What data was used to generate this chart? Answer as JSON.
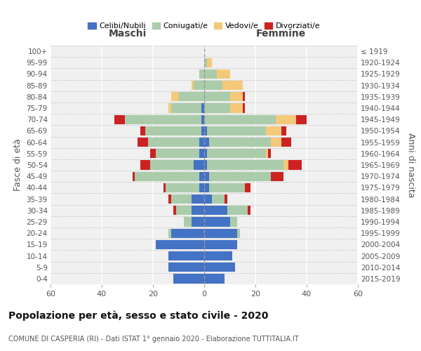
{
  "age_groups_bottom_to_top": [
    "0-4",
    "5-9",
    "10-14",
    "15-19",
    "20-24",
    "25-29",
    "30-34",
    "35-39",
    "40-44",
    "45-49",
    "50-54",
    "55-59",
    "60-64",
    "65-69",
    "70-74",
    "75-79",
    "80-84",
    "85-89",
    "90-94",
    "95-99",
    "100+"
  ],
  "birth_years_bottom_to_top": [
    "2015-2019",
    "2010-2014",
    "2005-2009",
    "2000-2004",
    "1995-1999",
    "1990-1994",
    "1985-1989",
    "1980-1984",
    "1975-1979",
    "1970-1974",
    "1965-1969",
    "1960-1964",
    "1955-1959",
    "1950-1954",
    "1945-1949",
    "1940-1944",
    "1935-1939",
    "1930-1934",
    "1925-1929",
    "1920-1924",
    "≤ 1919"
  ],
  "male": {
    "celibe": [
      12,
      14,
      14,
      19,
      13,
      5,
      5,
      5,
      2,
      2,
      4,
      2,
      2,
      1,
      1,
      1,
      0,
      0,
      0,
      0,
      0
    ],
    "coniugato": [
      0,
      0,
      0,
      0,
      1,
      3,
      6,
      8,
      13,
      25,
      17,
      17,
      20,
      22,
      30,
      12,
      10,
      4,
      2,
      0,
      0
    ],
    "vedovo": [
      0,
      0,
      0,
      0,
      0,
      0,
      0,
      0,
      0,
      0,
      0,
      0,
      0,
      0,
      0,
      1,
      3,
      1,
      0,
      0,
      0
    ],
    "divorziato": [
      0,
      0,
      0,
      0,
      0,
      0,
      1,
      1,
      1,
      1,
      4,
      2,
      4,
      2,
      4,
      0,
      0,
      0,
      0,
      0,
      0
    ]
  },
  "female": {
    "nubile": [
      8,
      12,
      11,
      13,
      13,
      10,
      9,
      3,
      2,
      2,
      1,
      1,
      2,
      1,
      0,
      0,
      0,
      0,
      0,
      0,
      0
    ],
    "coniugata": [
      0,
      0,
      0,
      0,
      1,
      3,
      8,
      5,
      14,
      24,
      30,
      23,
      24,
      23,
      28,
      10,
      10,
      7,
      5,
      1,
      0
    ],
    "vedova": [
      0,
      0,
      0,
      0,
      0,
      0,
      0,
      0,
      0,
      0,
      2,
      1,
      4,
      6,
      8,
      5,
      5,
      8,
      5,
      2,
      0
    ],
    "divorziata": [
      0,
      0,
      0,
      0,
      0,
      0,
      1,
      1,
      2,
      5,
      5,
      1,
      4,
      2,
      4,
      1,
      1,
      0,
      0,
      0,
      0
    ]
  },
  "colors": {
    "celibe": "#4472C4",
    "coniugato": "#AACCAA",
    "vedovo": "#F5C97A",
    "divorziato": "#CC2222"
  },
  "legend_labels": [
    "Celibi/Nubili",
    "Coniugati/e",
    "Vedovi/e",
    "Divorziati/e"
  ],
  "title": "Popolazione per età, sesso e stato civile - 2020",
  "subtitle": "COMUNE DI CASPERIA (RI) - Dati ISTAT 1° gennaio 2020 - Elaborazione TUTTITALIA.IT",
  "xlabel_left": "Maschi",
  "xlabel_right": "Femmine",
  "ylabel_left": "Fasce di età",
  "ylabel_right": "Anni di nascita",
  "xlim": 60,
  "bg_color": "#f0f0f0"
}
